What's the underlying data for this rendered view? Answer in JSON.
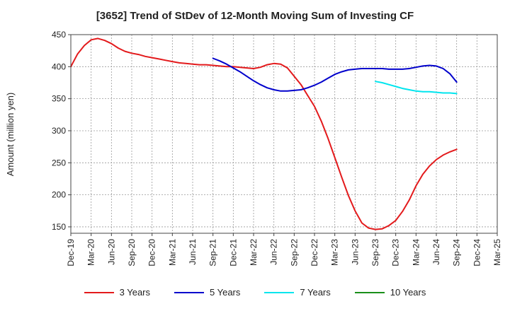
{
  "chart_data": {
    "type": "line",
    "title": "[3652]  Trend of StDev of 12-Month Moving Sum of Investing CF",
    "xlabel": "",
    "ylabel": "Amount (million yen)",
    "ylim": [
      140,
      450
    ],
    "yticks": [
      150,
      200,
      250,
      300,
      350,
      400,
      450
    ],
    "xlim": [
      "2019-12",
      "2025-03"
    ],
    "xticks": [
      "Dec-19",
      "Mar-20",
      "Jun-20",
      "Sep-20",
      "Dec-20",
      "Mar-21",
      "Jun-21",
      "Sep-21",
      "Dec-21",
      "Mar-22",
      "Jun-22",
      "Sep-22",
      "Dec-22",
      "Mar-23",
      "Jun-23",
      "Sep-23",
      "Dec-23",
      "Mar-24",
      "Jun-24",
      "Sep-24",
      "Dec-24",
      "Mar-25"
    ],
    "grid": true,
    "legend_position": "bottom",
    "series": [
      {
        "name": "3 Years",
        "color": "#e31a1c",
        "x": [
          "2019-12",
          "2020-01",
          "2020-02",
          "2020-03",
          "2020-04",
          "2020-05",
          "2020-06",
          "2020-07",
          "2020-08",
          "2020-09",
          "2020-10",
          "2020-11",
          "2020-12",
          "2021-01",
          "2021-02",
          "2021-03",
          "2021-04",
          "2021-05",
          "2021-06",
          "2021-07",
          "2021-08",
          "2021-09",
          "2021-10",
          "2021-11",
          "2021-12",
          "2022-01",
          "2022-02",
          "2022-03",
          "2022-04",
          "2022-05",
          "2022-06",
          "2022-07",
          "2022-08",
          "2022-09",
          "2022-10",
          "2022-11",
          "2022-12",
          "2023-01",
          "2023-02",
          "2023-03",
          "2023-04",
          "2023-05",
          "2023-06",
          "2023-07",
          "2023-08",
          "2023-09",
          "2023-10",
          "2023-11",
          "2023-12",
          "2024-01",
          "2024-02",
          "2024-03",
          "2024-04",
          "2024-05",
          "2024-06",
          "2024-07",
          "2024-08",
          "2024-09"
        ],
        "values": [
          400,
          420,
          433,
          442,
          444,
          441,
          436,
          429,
          424,
          421,
          419,
          416,
          414,
          412,
          410,
          408,
          406,
          405,
          404,
          403,
          403,
          402,
          401,
          400,
          400,
          399,
          398,
          397,
          399,
          403,
          405,
          404,
          398,
          385,
          372,
          355,
          338,
          315,
          288,
          258,
          228,
          199,
          175,
          156,
          148,
          146,
          147,
          152,
          160,
          174,
          192,
          214,
          232,
          245,
          255,
          262,
          267,
          271
        ]
      },
      {
        "name": "5 Years",
        "color": "#0000cc",
        "x": [
          "2021-09",
          "2021-10",
          "2021-11",
          "2021-12",
          "2022-01",
          "2022-02",
          "2022-03",
          "2022-04",
          "2022-05",
          "2022-06",
          "2022-07",
          "2022-08",
          "2022-09",
          "2022-10",
          "2022-11",
          "2022-12",
          "2023-01",
          "2023-02",
          "2023-03",
          "2023-04",
          "2023-05",
          "2023-06",
          "2023-07",
          "2023-08",
          "2023-09",
          "2023-10",
          "2023-11",
          "2023-12",
          "2024-01",
          "2024-02",
          "2024-03",
          "2024-04",
          "2024-05",
          "2024-06",
          "2024-07",
          "2024-08",
          "2024-09"
        ],
        "values": [
          413,
          409,
          404,
          398,
          392,
          385,
          378,
          372,
          367,
          364,
          362,
          362,
          363,
          364,
          367,
          371,
          376,
          382,
          388,
          392,
          395,
          396,
          397,
          397,
          397,
          397,
          396,
          396,
          396,
          397,
          399,
          401,
          402,
          401,
          397,
          389,
          376
        ]
      },
      {
        "name": "7 Years",
        "color": "#00e5ee",
        "x": [
          "2023-09",
          "2023-10",
          "2023-11",
          "2023-12",
          "2024-01",
          "2024-02",
          "2024-03",
          "2024-04",
          "2024-05",
          "2024-06",
          "2024-07",
          "2024-08",
          "2024-09"
        ],
        "values": [
          377,
          375,
          372,
          369,
          366,
          364,
          362,
          361,
          361,
          360,
          359,
          359,
          358
        ]
      },
      {
        "name": "10 Years",
        "color": "#1a8f1a",
        "x": [],
        "values": []
      }
    ]
  }
}
